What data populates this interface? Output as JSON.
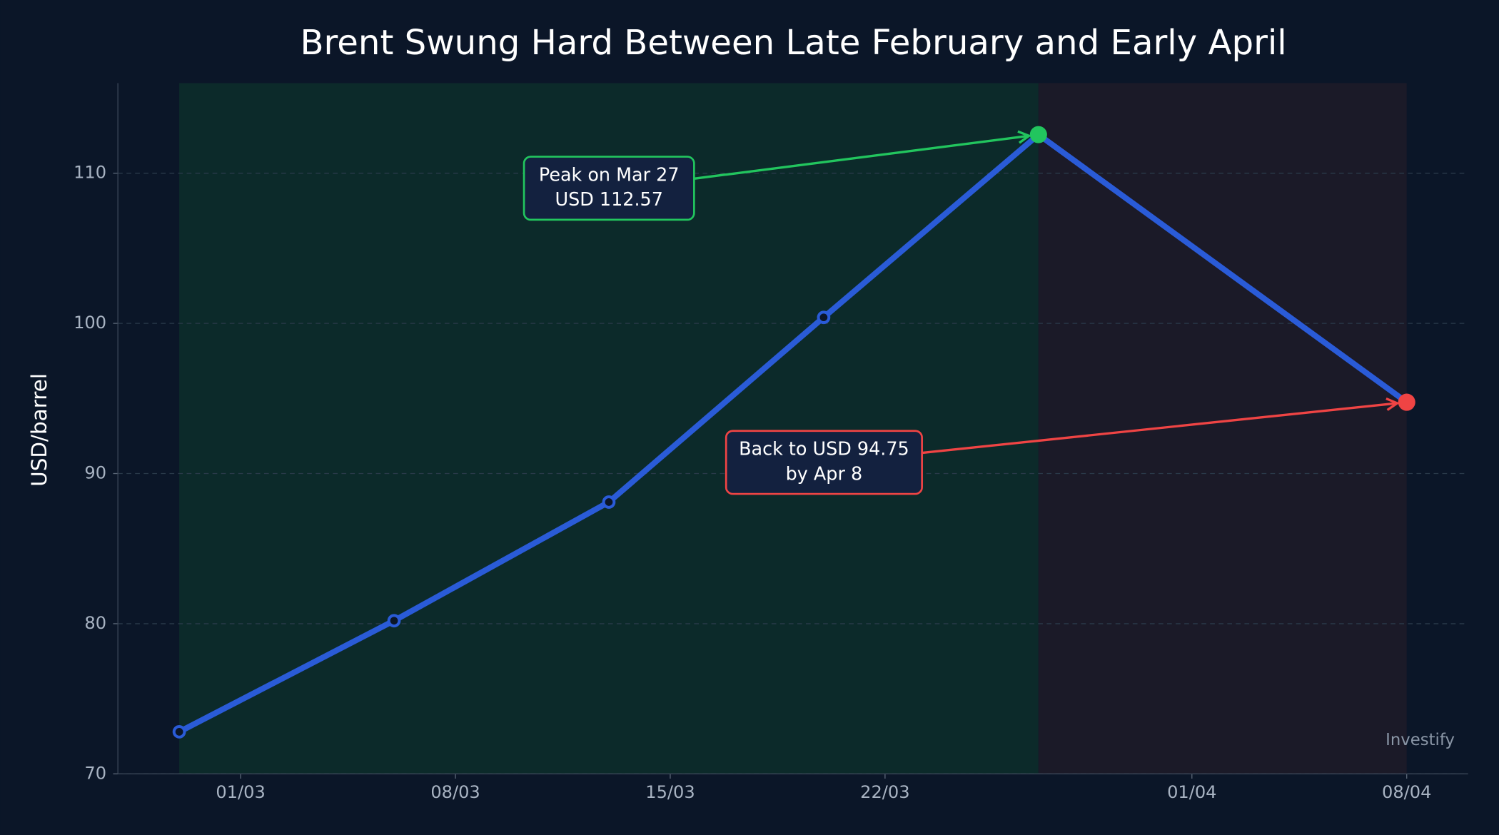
{
  "chart_data": {
    "type": "line",
    "title": "Brent Swung Hard Between Late February and Early April",
    "y_label": "USD/barrel",
    "watermark": "Investify",
    "x": [
      "27/02",
      "06/03",
      "13/03",
      "20/03",
      "27/03",
      "08/04"
    ],
    "series": [
      {
        "name": "Brent",
        "color": "#2a5bd7",
        "values": [
          72.8,
          80.2,
          88.1,
          100.4,
          112.57,
          94.75
        ]
      }
    ],
    "xlim": [
      "25/02",
      "10/04"
    ],
    "xticks": [
      "01/03",
      "08/03",
      "15/03",
      "22/03",
      "01/04",
      "08/04"
    ],
    "ylim": [
      70,
      116
    ],
    "yticks": [
      70,
      80,
      90,
      100,
      110
    ],
    "grid": true,
    "shaded_spans": [
      {
        "from": "27/02",
        "to": "27/03",
        "color": "#0c2a2a"
      },
      {
        "from": "27/03",
        "to": "08/04",
        "color": "#1b1a28"
      }
    ],
    "annotations": [
      {
        "lines": [
          "Peak on Mar 27",
          "USD 112.57"
        ],
        "color": "#22c55e"
      },
      {
        "lines": [
          "Back to USD 94.75",
          "by Apr 8"
        ],
        "color": "#ef4444"
      }
    ]
  }
}
